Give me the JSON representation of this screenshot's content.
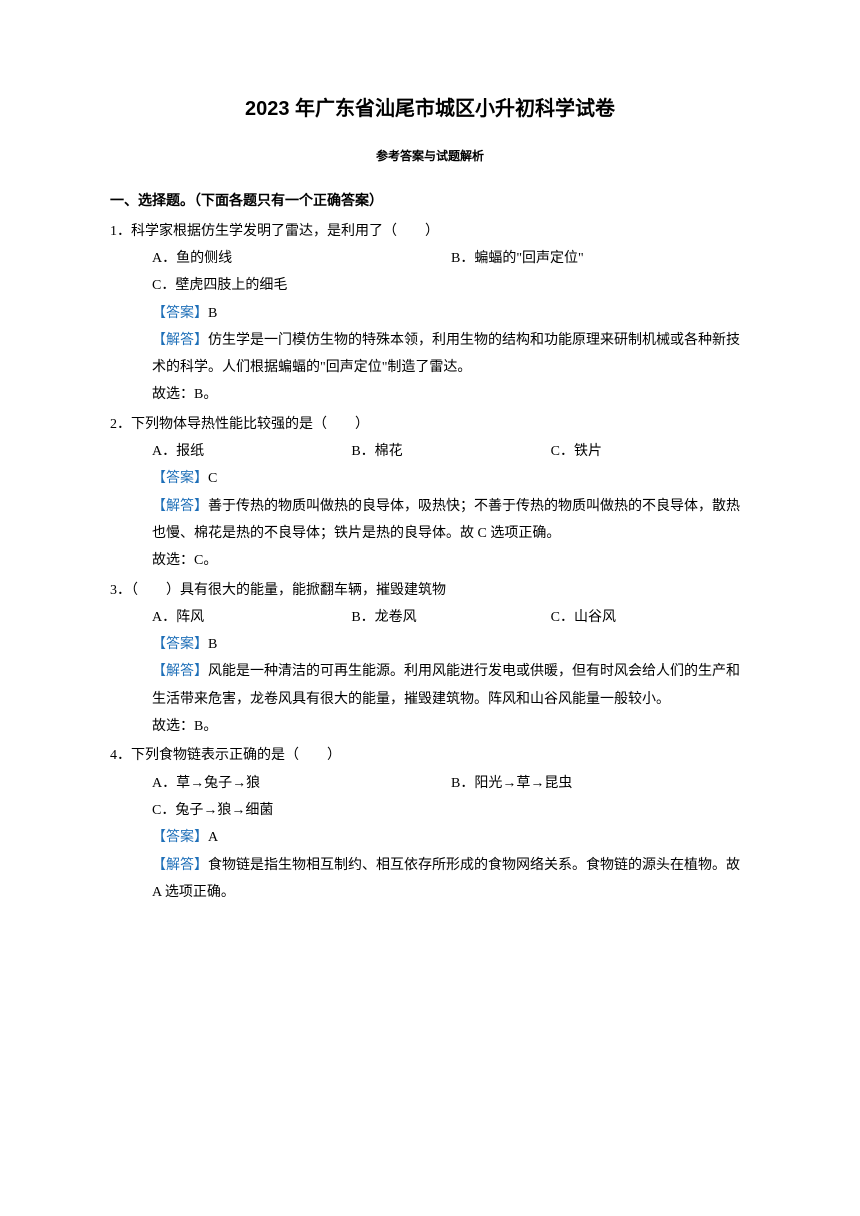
{
  "title": "2023 年广东省汕尾市城区小升初科学试卷",
  "subtitle": "参考答案与试题解析",
  "section_header": "一、选择题。（下面各题只有一个正确答案）",
  "answer_label": "【答案】",
  "explain_label": "【解答】",
  "colors": {
    "label": "#1e6fb8",
    "text": "#000000",
    "bg": "#ffffff"
  },
  "q1": {
    "num": "1．",
    "stem": "科学家根据仿生学发明了雷达，是利用了（　　）",
    "optA": "A．鱼的侧线",
    "optB": "B．蝙蝠的\"回声定位\"",
    "optC": "C．壁虎四肢上的细毛",
    "answer": "B",
    "explain": "仿生学是一门模仿生物的特殊本领，利用生物的结构和功能原理来研制机械或各种新技术的科学。人们根据蝙蝠的\"回声定位\"制造了雷达。",
    "conclusion": "故选：B。"
  },
  "q2": {
    "num": "2．",
    "stem": "下列物体导热性能比较强的是（　　）",
    "optA": "A．报纸",
    "optB": "B．棉花",
    "optC": "C．铁片",
    "answer": "C",
    "explain": "善于传热的物质叫做热的良导体，吸热快；不善于传热的物质叫做热的不良导体，散热也慢、棉花是热的不良导体；铁片是热的良导体。故 C 选项正确。",
    "conclusion": "故选：C。"
  },
  "q3": {
    "num": "3．",
    "stem": "（　　）具有很大的能量，能掀翻车辆，摧毁建筑物",
    "optA": "A．阵风",
    "optB": "B．龙卷风",
    "optC": "C．山谷风",
    "answer": "B",
    "explain": "风能是一种清洁的可再生能源。利用风能进行发电或供暖，但有时风会给人们的生产和生活带来危害，龙卷风具有很大的能量，摧毁建筑物。阵风和山谷风能量一般较小。",
    "conclusion": "故选：B。"
  },
  "q4": {
    "num": "4．",
    "stem": "下列食物链表示正确的是（　　）",
    "optA": "A．草→兔子→狼",
    "optB": "B．阳光→草→昆虫",
    "optC": "C．兔子→狼→细菌",
    "answer": "A",
    "explain": "食物链是指生物相互制约、相互依存所形成的食物网络关系。食物链的源头在植物。故 A 选项正确。"
  }
}
